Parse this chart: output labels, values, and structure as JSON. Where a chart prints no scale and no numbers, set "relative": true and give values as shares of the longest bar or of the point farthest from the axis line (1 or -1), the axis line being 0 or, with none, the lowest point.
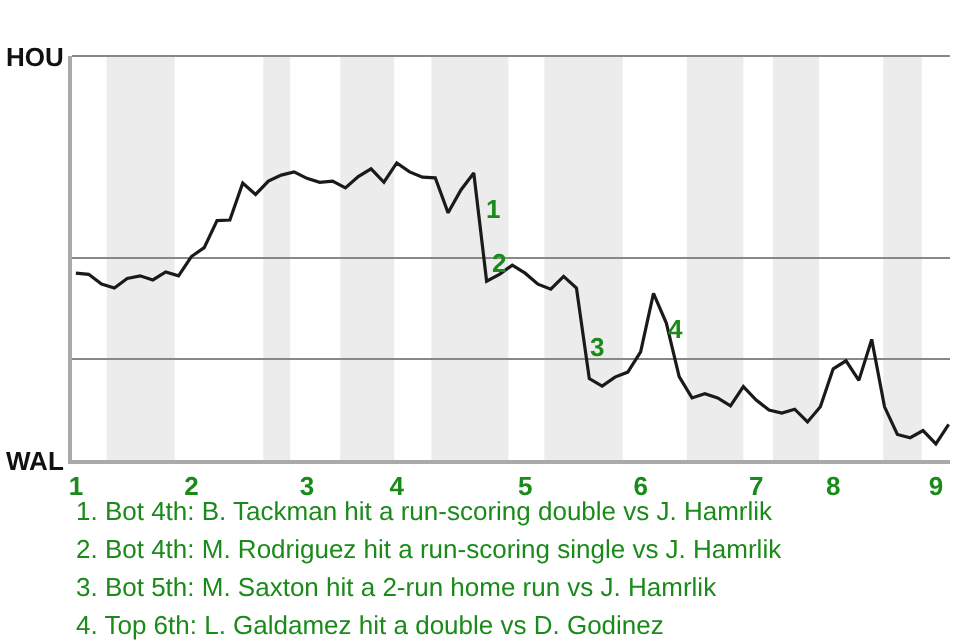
{
  "chart_data": {
    "type": "line",
    "relative": true,
    "categories": [
      "1",
      null,
      null,
      null,
      null,
      null,
      null,
      null,
      null,
      "2",
      null,
      null,
      null,
      null,
      null,
      null,
      null,
      null,
      "3",
      null,
      null,
      null,
      null,
      null,
      null,
      "4",
      null,
      null,
      null,
      null,
      null,
      null,
      null,
      null,
      null,
      "5",
      null,
      null,
      null,
      null,
      null,
      null,
      null,
      null,
      "6",
      null,
      null,
      null,
      null,
      null,
      null,
      null,
      null,
      "7",
      null,
      null,
      null,
      null,
      null,
      "8",
      null,
      null,
      null,
      null,
      null,
      null,
      null,
      "9",
      null
    ],
    "series": [
      {
        "color": "#1a1a1a",
        "values": [
          0.629,
          0.625,
          0.592,
          0.579,
          0.611,
          0.62,
          0.606,
          0.633,
          0.62,
          0.685,
          0.715,
          0.806,
          0.808,
          0.932,
          0.894,
          0.939,
          0.959,
          0.97,
          0.948,
          0.935,
          0.939,
          0.916,
          0.954,
          0.98,
          0.935,
          1,
          0.97,
          0.952,
          0.95,
          0.832,
          0.909,
          0.966,
          0.602,
          0.625,
          0.656,
          0.629,
          0.592,
          0.575,
          0.618,
          0.579,
          0.274,
          0.249,
          0.279,
          0.296,
          0.364,
          0.561,
          0.461,
          0.281,
          0.209,
          0.223,
          0.209,
          0.182,
          0.247,
          0.202,
          0.168,
          0.158,
          0.171,
          0.128,
          0.179,
          0.307,
          0.334,
          0.268,
          0.406,
          0.179,
          0.086,
          0.075,
          0.099,
          0.054,
          0.12
        ]
      }
    ],
    "legend": false,
    "ref_lines": [
      {
        "axis": "y",
        "value": 0.34,
        "color": "#888888"
      },
      {
        "axis": "y",
        "value": 0.68,
        "color": "#888888"
      }
    ],
    "annotations": [
      "1",
      "2",
      "3",
      "4",
      "HOU",
      "WAL",
      "1. Bot 4th: B. Tackman hit a run-scoring double vs J. Hamrlik",
      "2. Bot 4th: M. Rodriguez hit a run-scoring single vs J. Hamrlik",
      "3. Bot 5th: M. Saxton hit a 2-run home run vs J. Hamrlik",
      "4. Top 6th: L. Galdamez hit a double vs D. Godinez"
    ]
  }
}
